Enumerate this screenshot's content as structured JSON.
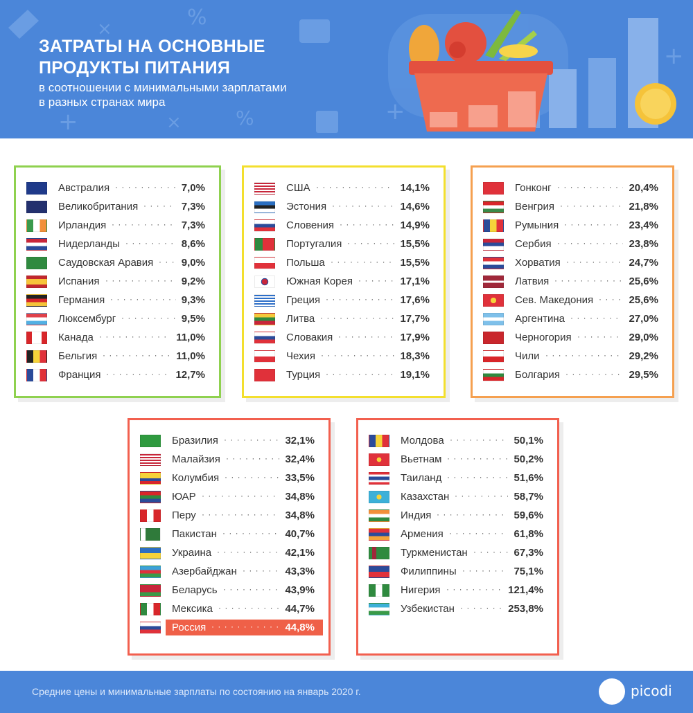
{
  "header": {
    "title_line1": "ЗАТРАТЫ НА ОСНОВНЫЕ",
    "title_line2": "ПРОДУКТЫ ПИТАНИЯ",
    "subtitle_line1": "в соотношении с минимальными зарплатами",
    "subtitle_line2": "в разных странах мира"
  },
  "colors": {
    "header_bg": "#4b86d9",
    "green": "#8fd14f",
    "yellow": "#f3df2e",
    "orange": "#f5a050",
    "red": "#f2604f",
    "highlight": "#ef6048"
  },
  "groups": [
    {
      "color": "green",
      "rows": [
        {
          "country": "Австралия",
          "value": "7,0%",
          "flag": "australia"
        },
        {
          "country": "Великобритания",
          "value": "7,3%",
          "flag": "uk"
        },
        {
          "country": "Ирландия",
          "value": "7,3%",
          "flag": "ireland"
        },
        {
          "country": "Нидерланды",
          "value": "8,6%",
          "flag": "netherlands"
        },
        {
          "country": "Саудовская Аравия",
          "value": "9,0%",
          "flag": "saudi"
        },
        {
          "country": "Испания",
          "value": "9,2%",
          "flag": "spain"
        },
        {
          "country": "Германия",
          "value": "9,3%",
          "flag": "germany"
        },
        {
          "country": "Люксембург",
          "value": "9,5%",
          "flag": "luxembourg"
        },
        {
          "country": "Канада",
          "value": "11,0%",
          "flag": "canada"
        },
        {
          "country": "Бельгия",
          "value": "11,0%",
          "flag": "belgium"
        },
        {
          "country": "Франция",
          "value": "12,7%",
          "flag": "france"
        }
      ]
    },
    {
      "color": "yellow",
      "rows": [
        {
          "country": "США",
          "value": "14,1%",
          "flag": "usa"
        },
        {
          "country": "Эстония",
          "value": "14,6%",
          "flag": "estonia"
        },
        {
          "country": "Словения",
          "value": "14,9%",
          "flag": "slovenia"
        },
        {
          "country": "Португалия",
          "value": "15,5%",
          "flag": "portugal"
        },
        {
          "country": "Польша",
          "value": "15,5%",
          "flag": "poland"
        },
        {
          "country": "Южная Корея",
          "value": "17,1%",
          "flag": "korea"
        },
        {
          "country": "Греция",
          "value": "17,6%",
          "flag": "greece"
        },
        {
          "country": "Литва",
          "value": "17,7%",
          "flag": "lithuania"
        },
        {
          "country": "Словакия",
          "value": "17,9%",
          "flag": "slovakia"
        },
        {
          "country": "Чехия",
          "value": "18,3%",
          "flag": "czechia"
        },
        {
          "country": "Турция",
          "value": "19,1%",
          "flag": "turkey"
        }
      ]
    },
    {
      "color": "orange",
      "rows": [
        {
          "country": "Гонконг",
          "value": "20,4%",
          "flag": "hongkong"
        },
        {
          "country": "Венгрия",
          "value": "21,8%",
          "flag": "hungary"
        },
        {
          "country": "Румыния",
          "value": "23,4%",
          "flag": "romania"
        },
        {
          "country": "Сербия",
          "value": "23,8%",
          "flag": "serbia"
        },
        {
          "country": "Хорватия",
          "value": "24,7%",
          "flag": "croatia"
        },
        {
          "country": "Латвия",
          "value": "25,6%",
          "flag": "latvia"
        },
        {
          "country": "Сев. Македония",
          "value": "25,6%",
          "flag": "macedonia"
        },
        {
          "country": "Аргентина",
          "value": "27,0%",
          "flag": "argentina"
        },
        {
          "country": "Черногория",
          "value": "29,0%",
          "flag": "montenegro"
        },
        {
          "country": "Чили",
          "value": "29,2%",
          "flag": "chile"
        },
        {
          "country": "Болгария",
          "value": "29,5%",
          "flag": "bulgaria"
        }
      ]
    },
    {
      "color": "red",
      "rows": [
        {
          "country": "Бразилия",
          "value": "32,1%",
          "flag": "brazil"
        },
        {
          "country": "Малайзия",
          "value": "32,4%",
          "flag": "malaysia"
        },
        {
          "country": "Колумбия",
          "value": "33,5%",
          "flag": "colombia"
        },
        {
          "country": "ЮАР",
          "value": "34,8%",
          "flag": "southafrica"
        },
        {
          "country": "Перу",
          "value": "34,8%",
          "flag": "peru"
        },
        {
          "country": "Пакистан",
          "value": "40,7%",
          "flag": "pakistan"
        },
        {
          "country": "Украина",
          "value": "42,1%",
          "flag": "ukraine"
        },
        {
          "country": "Азербайджан",
          "value": "43,3%",
          "flag": "azerbaijan"
        },
        {
          "country": "Беларусь",
          "value": "43,9%",
          "flag": "belarus"
        },
        {
          "country": "Мексика",
          "value": "44,7%",
          "flag": "mexico"
        },
        {
          "country": "Россия",
          "value": "44,8%",
          "flag": "russia",
          "highlight": true
        }
      ]
    },
    {
      "color": "red",
      "rows": [
        {
          "country": "Молдова",
          "value": "50,1%",
          "flag": "moldova"
        },
        {
          "country": "Вьетнам",
          "value": "50,2%",
          "flag": "vietnam"
        },
        {
          "country": "Таиланд",
          "value": "51,6%",
          "flag": "thailand"
        },
        {
          "country": "Казахстан",
          "value": "58,7%",
          "flag": "kazakhstan"
        },
        {
          "country": "Индия",
          "value": "59,6%",
          "flag": "india"
        },
        {
          "country": "Армения",
          "value": "61,8%",
          "flag": "armenia"
        },
        {
          "country": "Туркменистан",
          "value": "67,3%",
          "flag": "turkmenistan"
        },
        {
          "country": "Филиппины",
          "value": "75,1%",
          "flag": "philippines"
        },
        {
          "country": "Нигерия",
          "value": "121,4%",
          "flag": "nigeria"
        },
        {
          "country": "Узбекистан",
          "value": "253,8%",
          "flag": "uzbekistan"
        }
      ]
    }
  ],
  "footer": {
    "note": "Средние цены и минимальные зарплаты по состоянию на январь 2020 г.",
    "logo": "picodi"
  }
}
